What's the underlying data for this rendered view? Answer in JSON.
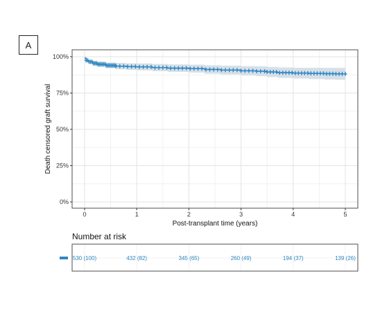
{
  "panel_label": "A",
  "colors": {
    "series": "#2e86c1",
    "ci_band": "#d3dde5",
    "grid_major": "#e3e3e3",
    "grid_minor": "#f1f1f1",
    "frame": "#4d4d4d"
  },
  "chart_data": {
    "type": "line",
    "subtype": "kaplan-meier",
    "title": "",
    "xlabel": "Post-transplant time (years)",
    "ylabel": "Death censored graft survival",
    "xlim": [
      0,
      5
    ],
    "ylim": [
      0,
      1
    ],
    "x_ticks": [
      0,
      1,
      2,
      3,
      4,
      5
    ],
    "y_ticks": [
      0,
      0.25,
      0.5,
      0.75,
      1
    ],
    "y_tick_labels": [
      "0%",
      "25%",
      "50%",
      "75%",
      "100%"
    ],
    "grid": true,
    "legend": "none",
    "series": [
      {
        "name": "",
        "x": [
          0,
          0.03,
          0.08,
          0.15,
          0.25,
          0.4,
          0.6,
          0.8,
          1.0,
          1.3,
          1.6,
          2.0,
          2.3,
          2.6,
          3.0,
          3.3,
          3.5,
          3.7,
          4.0,
          4.3,
          4.6,
          4.8,
          5.0
        ],
        "y": [
          0.99,
          0.975,
          0.965,
          0.955,
          0.948,
          0.94,
          0.935,
          0.932,
          0.93,
          0.925,
          0.921,
          0.918,
          0.912,
          0.908,
          0.903,
          0.9,
          0.895,
          0.89,
          0.887,
          0.885,
          0.883,
          0.882,
          0.882
        ],
        "ci_lower": [
          0.98,
          0.962,
          0.95,
          0.938,
          0.929,
          0.92,
          0.913,
          0.909,
          0.906,
          0.9,
          0.895,
          0.891,
          0.883,
          0.878,
          0.871,
          0.866,
          0.86,
          0.854,
          0.85,
          0.846,
          0.843,
          0.841,
          0.84
        ],
        "ci_upper": [
          1.0,
          0.988,
          0.98,
          0.972,
          0.967,
          0.96,
          0.957,
          0.955,
          0.954,
          0.95,
          0.947,
          0.945,
          0.941,
          0.938,
          0.935,
          0.934,
          0.93,
          0.926,
          0.924,
          0.924,
          0.923,
          0.923,
          0.924
        ]
      }
    ]
  },
  "risk_table": {
    "title": "Number at risk",
    "times": [
      0,
      1,
      2,
      3,
      4,
      5
    ],
    "values": [
      "530 (100)",
      "432 (82)",
      "345 (65)",
      "260 (49)",
      "194 (37)",
      "139 (26)"
    ]
  }
}
